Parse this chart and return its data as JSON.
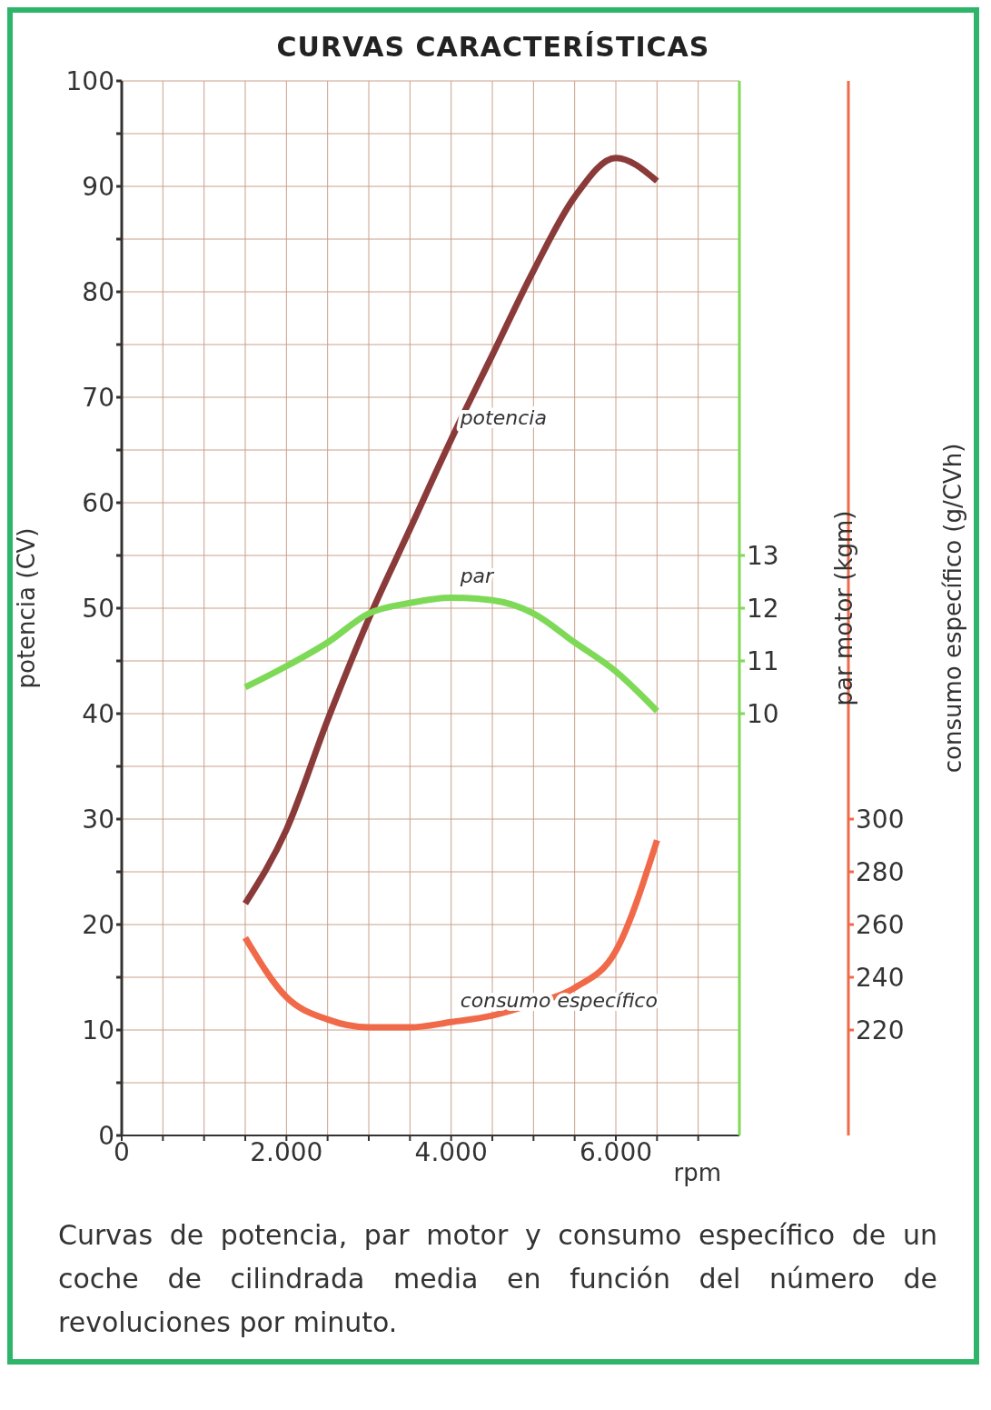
{
  "chart_data": {
    "type": "line",
    "title": "CURVAS CARACTERÍSTICAS",
    "xlabel": "rpm",
    "ylabel": "potencia (CV)",
    "y2label": "par motor (kgm)",
    "y3label": "consumo específico (g/CVh)",
    "x": [
      1500,
      2000,
      2500,
      3000,
      3500,
      4000,
      4500,
      5000,
      5500,
      6000,
      6500
    ],
    "series": [
      {
        "name": "potencia",
        "color": "#8b3a3a",
        "values": [
          22,
          29,
          39.4,
          49,
          57.5,
          66,
          74,
          82,
          89,
          92.7,
          90.5
        ]
      },
      {
        "name": "par",
        "color": "#7ed957",
        "axis": "y2",
        "values": [
          10.5,
          10.9,
          11.35,
          11.9,
          12.1,
          12.2,
          12.15,
          11.9,
          11.35,
          10.8,
          10.05
        ]
      },
      {
        "name": "consumo específico",
        "color": "#f06a4a",
        "axis": "y3",
        "values": [
          255,
          232.5,
          224,
          221,
          221,
          223,
          225.5,
          230,
          236,
          250,
          292
        ]
      }
    ],
    "xlim": [
      0,
      7500
    ],
    "xticks": [
      0,
      {
        "value": 500,
        "label": null
      },
      {
        "value": 1000,
        "label": null
      },
      {
        "value": 1500,
        "label": null
      },
      {
        "value": 2000,
        "label": "2.000"
      },
      {
        "value": 2500,
        "label": null
      },
      {
        "value": 3000,
        "label": null
      },
      {
        "value": 3500,
        "label": null
      },
      {
        "value": 4000,
        "label": "4.000"
      },
      {
        "value": 4500,
        "label": null
      },
      {
        "value": 5000,
        "label": null
      },
      {
        "value": 5500,
        "label": null
      },
      {
        "value": 6000,
        "label": "6.000"
      },
      {
        "value": 6500,
        "label": null
      },
      {
        "value": 7000,
        "label": null
      }
    ],
    "ylim": [
      0,
      100
    ],
    "yticks": [
      0,
      {
        "value": 5,
        "label": null
      },
      10,
      {
        "value": 15,
        "label": null
      },
      20,
      {
        "value": 25,
        "label": null
      },
      30,
      {
        "value": 35,
        "label": null
      },
      40,
      {
        "value": 45,
        "label": null
      },
      50,
      {
        "value": 55,
        "label": null
      },
      60,
      {
        "value": 65,
        "label": null
      },
      70,
      {
        "value": 75,
        "label": null
      },
      80,
      {
        "value": 85,
        "label": null
      },
      90,
      {
        "value": 95,
        "label": null
      },
      100
    ],
    "y2lim": [
      2,
      22
    ],
    "y2ticks": [
      10,
      11,
      12,
      13
    ],
    "y3lim": [
      180,
      580
    ],
    "y3ticks": [
      220,
      240,
      260,
      280,
      300
    ],
    "grid": true,
    "marker": "none",
    "line_style": "solid",
    "annotations": [
      "Curvas de potencia, par motor y consumo específico de un coche de cilindrada media en función del número de revoluciones por minuto."
    ]
  }
}
